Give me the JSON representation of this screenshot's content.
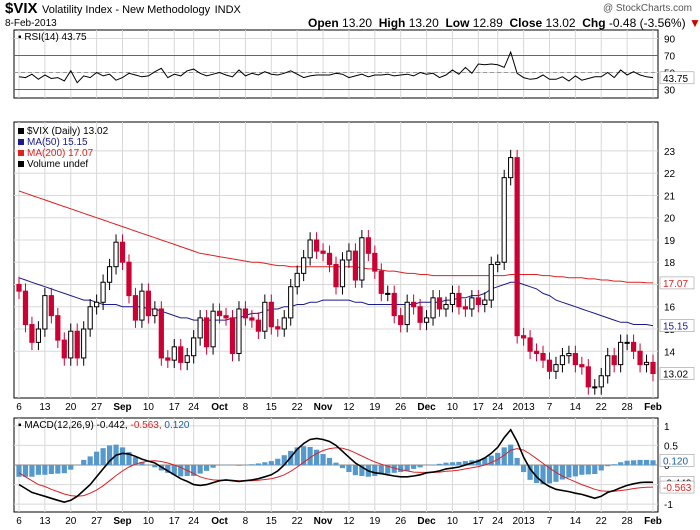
{
  "header": {
    "symbol": "$VIX",
    "name": "Volatility Index - New Methodology",
    "exchange": "INDX",
    "date": "8-Feb-2013",
    "watermark": "@ StockCharts.com",
    "open_label": "Open",
    "open": "13.20",
    "high_label": "High",
    "high": "13.20",
    "low_label": "Low",
    "low": "12.89",
    "close_label": "Close",
    "close": "13.02",
    "chg_label": "Chg",
    "chg": "-0.48 (-3.56%)",
    "chg_arrow": "▼"
  },
  "colors": {
    "up": "#000000",
    "down": "#cc0033",
    "ma50": "#1a1a8c",
    "ma200": "#dd2222",
    "histogram": "#5599cc",
    "grid": "#d8d8d8"
  },
  "chart_data": [
    {
      "panel": "rsi",
      "type": "line",
      "legend": "RSI(14) 43.75",
      "ylim": [
        20,
        100
      ],
      "yticks": [
        30,
        50,
        70,
        90
      ],
      "reference_levels": [
        30,
        70
      ],
      "last_value_label": "43.75",
      "values": [
        45,
        44,
        48,
        42,
        47,
        43,
        44,
        40,
        52,
        38,
        46,
        44,
        50,
        46,
        48,
        41,
        44,
        49,
        47,
        45,
        46,
        51,
        55,
        44,
        48,
        46,
        52,
        54,
        49,
        46,
        48,
        50,
        47,
        45,
        53,
        46,
        49,
        47,
        51,
        48,
        47,
        49,
        52,
        48,
        44,
        46,
        47,
        47,
        47,
        49,
        48,
        44,
        46,
        48,
        45,
        47,
        47,
        48,
        46,
        47,
        48,
        46,
        50,
        48,
        49,
        44,
        47,
        53,
        48,
        56,
        49,
        60,
        59,
        60,
        59,
        56,
        74,
        49,
        44,
        42,
        43,
        47,
        42,
        42,
        45,
        40,
        46,
        41,
        43,
        45,
        45,
        50,
        44,
        53,
        47,
        51,
        47,
        45,
        44
      ]
    },
    {
      "panel": "price",
      "type": "candlestick",
      "legend": [
        "$VIX (Daily) 13.02",
        "MA(50) 15.15",
        "MA(200) 17.07",
        "Volume undef"
      ],
      "ylim": [
        11.9,
        24.3
      ],
      "yticks": [
        14,
        15,
        16,
        17,
        18,
        19,
        20,
        21,
        22,
        23
      ],
      "last_labels": {
        "close": "13.02",
        "ma50": "15.15",
        "ma200": "17.07"
      },
      "xtick_labels": [
        "6",
        "13",
        "20",
        "27",
        "Sep",
        "10",
        "17",
        "24",
        "Oct",
        "8",
        "15",
        "22",
        "Nov",
        "12",
        "19",
        "26",
        "Dec",
        "10",
        "17",
        "24",
        "2013",
        "7",
        "14",
        "22",
        "28",
        "Feb"
      ],
      "close": [
        16.7,
        15.2,
        14.4,
        15.0,
        16.5,
        15.6,
        14.5,
        13.7,
        14.9,
        13.7,
        15.0,
        16.0,
        16.2,
        17.1,
        17.8,
        18.9,
        18.0,
        16.5,
        15.4,
        16.7,
        15.6,
        15.9,
        13.7,
        13.6,
        14.2,
        13.5,
        13.8,
        14.6,
        15.5,
        14.2,
        15.8,
        15.6,
        15.5,
        13.9,
        15.9,
        15.5,
        15.4,
        14.9,
        16.2,
        15.1,
        15.0,
        15.5,
        16.9,
        17.5,
        18.2,
        19.0,
        18.5,
        18.4,
        17.9,
        16.9,
        18.1,
        18.5,
        17.2,
        19.1,
        18.4,
        17.6,
        16.6,
        16.6,
        15.6,
        15.2,
        16.2,
        16.0,
        15.3,
        15.5,
        16.4,
        15.9,
        16.1,
        16.6,
        16.0,
        15.9,
        16.4,
        16.1,
        16.3,
        17.9,
        18.0,
        21.8,
        22.7,
        14.7,
        14.6,
        14.0,
        13.9,
        13.6,
        13.1,
        13.4,
        13.8,
        13.9,
        13.4,
        13.3,
        12.4,
        12.4,
        12.9,
        13.8,
        13.4,
        14.4,
        14.4,
        14.0,
        13.4,
        13.5,
        13.0
      ],
      "ma50": [
        17.3,
        17.2,
        17.1,
        17.0,
        16.9,
        16.8,
        16.7,
        16.6,
        16.5,
        16.4,
        16.3,
        16.3,
        16.2,
        16.1,
        16.1,
        16.1,
        16.0,
        16.0,
        16.0,
        16.0,
        15.9,
        15.9,
        15.8,
        15.7,
        15.6,
        15.5,
        15.5,
        15.4,
        15.4,
        15.4,
        15.4,
        15.4,
        15.4,
        15.5,
        15.5,
        15.6,
        15.7,
        15.7,
        15.8,
        15.9,
        15.9,
        16.0,
        16.0,
        16.1,
        16.1,
        16.2,
        16.2,
        16.3,
        16.3,
        16.3,
        16.3,
        16.3,
        16.2,
        16.2,
        16.1,
        16.1,
        16.1,
        16.1,
        16.1,
        16.1,
        16.1,
        16.1,
        16.2,
        16.2,
        16.2,
        16.2,
        16.3,
        16.3,
        16.4,
        16.4,
        16.5,
        16.5,
        16.6,
        16.8,
        16.9,
        17.0,
        17.1,
        17.1,
        17.0,
        16.9,
        16.8,
        16.6,
        16.5,
        16.3,
        16.2,
        16.1,
        16.0,
        15.9,
        15.8,
        15.7,
        15.6,
        15.5,
        15.4,
        15.3,
        15.3,
        15.2,
        15.2,
        15.2,
        15.15
      ],
      "ma200": [
        21.2,
        21.1,
        21.0,
        20.9,
        20.8,
        20.7,
        20.6,
        20.5,
        20.4,
        20.3,
        20.2,
        20.1,
        20.0,
        19.9,
        19.8,
        19.7,
        19.6,
        19.5,
        19.4,
        19.3,
        19.2,
        19.1,
        19.0,
        18.9,
        18.8,
        18.7,
        18.6,
        18.5,
        18.4,
        18.35,
        18.3,
        18.25,
        18.2,
        18.15,
        18.1,
        18.05,
        18.0,
        18.0,
        17.95,
        17.9,
        17.85,
        17.85,
        17.8,
        17.8,
        17.8,
        17.8,
        17.8,
        17.8,
        17.8,
        17.8,
        17.8,
        17.8,
        17.8,
        17.75,
        17.7,
        17.7,
        17.65,
        17.6,
        17.6,
        17.55,
        17.5,
        17.5,
        17.45,
        17.45,
        17.4,
        17.4,
        17.4,
        17.4,
        17.4,
        17.4,
        17.4,
        17.4,
        17.4,
        17.4,
        17.4,
        17.4,
        17.45,
        17.45,
        17.45,
        17.45,
        17.45,
        17.4,
        17.4,
        17.35,
        17.35,
        17.3,
        17.3,
        17.3,
        17.25,
        17.25,
        17.2,
        17.2,
        17.15,
        17.15,
        17.1,
        17.1,
        17.1,
        17.08,
        17.07
      ]
    },
    {
      "panel": "macd",
      "type": "line+histogram",
      "legend_prefix": "MACD(12,26,9)",
      "legend_macd": "-0.442",
      "legend_signal": "-0.563",
      "legend_hist": "0.120",
      "ylim": [
        -1.2,
        1.2
      ],
      "yticks": [
        -1.0,
        -0.5,
        0.0,
        0.5,
        1.0
      ],
      "last_labels": {
        "histogram": "0.120",
        "macd": "-0.442",
        "signal": "-0.563"
      },
      "xtick_labels": [
        "6",
        "13",
        "20",
        "27",
        "Sep",
        "10",
        "17",
        "24",
        "Oct",
        "8",
        "15",
        "22",
        "Nov",
        "12",
        "19",
        "26",
        "Dec",
        "10",
        "17",
        "24",
        "2013",
        "7",
        "14",
        "22",
        "28",
        "Feb"
      ],
      "macd": [
        -0.5,
        -0.6,
        -0.7,
        -0.75,
        -0.8,
        -0.85,
        -0.9,
        -0.95,
        -0.9,
        -0.8,
        -0.65,
        -0.5,
        -0.3,
        -0.1,
        0.1,
        0.25,
        0.3,
        0.28,
        0.22,
        0.15,
        0.1,
        0.05,
        -0.05,
        -0.15,
        -0.25,
        -0.35,
        -0.42,
        -0.5,
        -0.52,
        -0.5,
        -0.45,
        -0.4,
        -0.38,
        -0.4,
        -0.42,
        -0.4,
        -0.38,
        -0.35,
        -0.3,
        -0.25,
        -0.15,
        0.0,
        0.2,
        0.4,
        0.55,
        0.65,
        0.68,
        0.65,
        0.6,
        0.5,
        0.35,
        0.2,
        0.05,
        -0.05,
        -0.15,
        -0.2,
        -0.22,
        -0.25,
        -0.28,
        -0.3,
        -0.3,
        -0.28,
        -0.25,
        -0.2,
        -0.18,
        -0.15,
        -0.1,
        -0.08,
        -0.05,
        0.0,
        0.05,
        0.1,
        0.18,
        0.3,
        0.45,
        0.7,
        0.9,
        0.6,
        0.2,
        -0.1,
        -0.3,
        -0.45,
        -0.55,
        -0.62,
        -0.65,
        -0.68,
        -0.72,
        -0.75,
        -0.8,
        -0.85,
        -0.8,
        -0.7,
        -0.65,
        -0.58,
        -0.52,
        -0.48,
        -0.45,
        -0.44,
        -0.442
      ],
      "signal": [
        -0.2,
        -0.3,
        -0.4,
        -0.5,
        -0.55,
        -0.62,
        -0.68,
        -0.74,
        -0.78,
        -0.8,
        -0.78,
        -0.72,
        -0.64,
        -0.53,
        -0.4,
        -0.27,
        -0.15,
        -0.05,
        0.02,
        0.07,
        0.1,
        0.11,
        0.09,
        0.05,
        0.0,
        -0.06,
        -0.14,
        -0.22,
        -0.3,
        -0.35,
        -0.38,
        -0.39,
        -0.39,
        -0.39,
        -0.4,
        -0.4,
        -0.4,
        -0.39,
        -0.37,
        -0.35,
        -0.31,
        -0.25,
        -0.16,
        -0.05,
        0.07,
        0.19,
        0.29,
        0.37,
        0.42,
        0.44,
        0.43,
        0.38,
        0.31,
        0.23,
        0.15,
        0.08,
        0.02,
        -0.03,
        -0.08,
        -0.12,
        -0.15,
        -0.18,
        -0.19,
        -0.19,
        -0.19,
        -0.18,
        -0.16,
        -0.15,
        -0.13,
        -0.1,
        -0.07,
        -0.04,
        0.0,
        0.06,
        0.14,
        0.25,
        0.38,
        0.42,
        0.38,
        0.28,
        0.16,
        0.04,
        -0.08,
        -0.19,
        -0.28,
        -0.36,
        -0.43,
        -0.5,
        -0.56,
        -0.62,
        -0.66,
        -0.67,
        -0.67,
        -0.65,
        -0.63,
        -0.6,
        -0.58,
        -0.57,
        -0.563
      ]
    }
  ]
}
